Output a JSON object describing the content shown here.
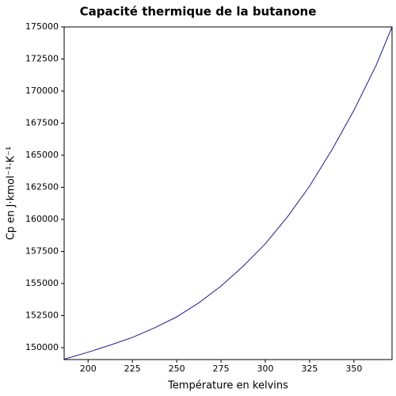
{
  "chart_data": {
    "type": "line",
    "title": "Capacité thermique de la butanone",
    "x_label": "Température en kelvins",
    "y_label": "Cp en J·kmol⁻¹·K⁻¹",
    "x": [
      186.5,
      200,
      212.5,
      225,
      237.5,
      250,
      262.5,
      275,
      287.5,
      300,
      312.5,
      325,
      337.5,
      350,
      362.5,
      371.5
    ],
    "series": [
      {
        "name": "Cp",
        "color": "#1a1a8c",
        "values": [
          149100,
          149650,
          150200,
          150800,
          151550,
          152400,
          153500,
          154800,
          156350,
          158100,
          160200,
          162600,
          165400,
          168500,
          172000,
          175000
        ]
      }
    ],
    "xlim": [
      186.5,
      371.5
    ],
    "xticks": [
      200,
      225,
      250,
      275,
      300,
      325,
      350
    ],
    "ylim": [
      149075,
      175000
    ],
    "yticks": [
      150000,
      152500,
      155000,
      157500,
      160000,
      162500,
      165000,
      167500,
      170000,
      172500,
      175000
    ],
    "grid": false
  }
}
